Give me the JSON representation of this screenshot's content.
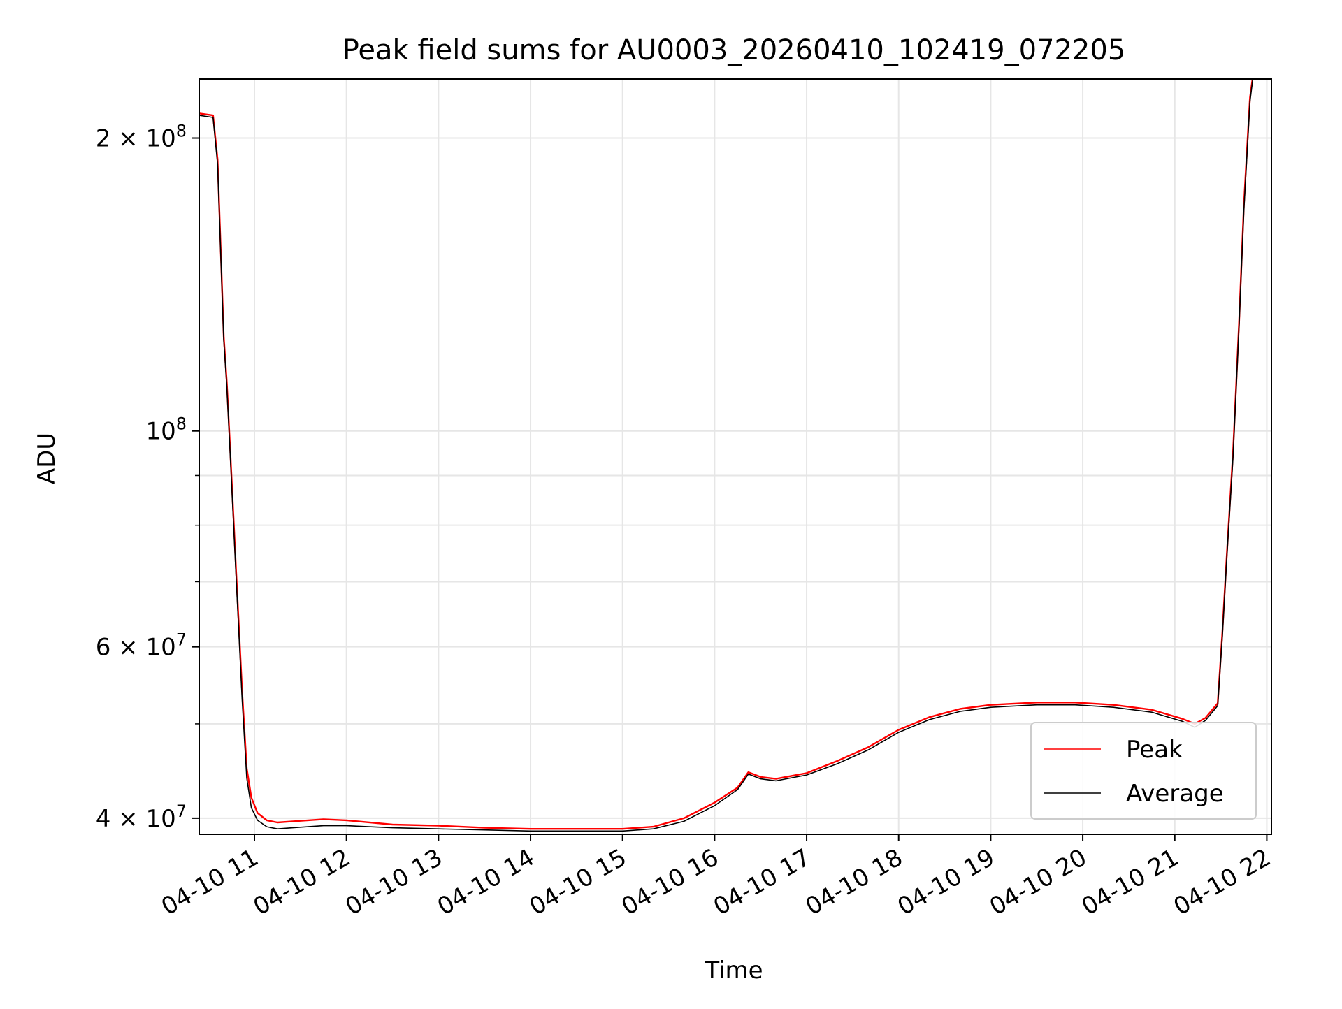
{
  "chart_data": {
    "type": "line",
    "title": "Peak field sums for AU0003_20260410_102419_072205",
    "xlabel": "Time",
    "ylabel": "ADU",
    "y_scale": "log",
    "ylim": [
      38500000,
      230000000
    ],
    "xlim": [
      "2026-04-10 10:24",
      "2026-04-10 22:03"
    ],
    "grid": true,
    "legend_position": "lower right",
    "x_tick_values": [
      "2026-04-10 11:00",
      "2026-04-10 12:00",
      "2026-04-10 13:00",
      "2026-04-10 14:00",
      "2026-04-10 15:00",
      "2026-04-10 16:00",
      "2026-04-10 17:00",
      "2026-04-10 18:00",
      "2026-04-10 19:00",
      "2026-04-10 20:00",
      "2026-04-10 21:00",
      "2026-04-10 22:00"
    ],
    "x_tick_labels": [
      "04-10 11",
      "04-10 12",
      "04-10 13",
      "04-10 14",
      "04-10 15",
      "04-10 16",
      "04-10 17",
      "04-10 18",
      "04-10 19",
      "04-10 20",
      "04-10 21",
      "04-10 22"
    ],
    "y_major_ticks": [
      {
        "value": 40000000,
        "mantissa": "4",
        "exponent": "7"
      },
      {
        "value": 60000000,
        "mantissa": "6",
        "exponent": "7"
      },
      {
        "value": 100000000,
        "mantissa": "",
        "exponent": "8"
      },
      {
        "value": 200000000,
        "mantissa": "2",
        "exponent": "8"
      }
    ],
    "y_minor_ticks": [
      50000000,
      70000000,
      80000000,
      90000000,
      300000000
    ],
    "series": [
      {
        "name": "Peak",
        "color": "#ff0000",
        "points": [
          [
            "2026-04-10 10:24",
            212000000
          ],
          [
            "2026-04-10 10:33",
            211000000
          ],
          [
            "2026-04-10 10:36",
            190000000
          ],
          [
            "2026-04-10 10:40",
            125000000
          ],
          [
            "2026-04-10 10:42",
            112000000
          ],
          [
            "2026-04-10 10:44",
            97000000
          ],
          [
            "2026-04-10 10:48",
            72000000
          ],
          [
            "2026-04-10 10:52",
            54000000
          ],
          [
            "2026-04-10 10:55",
            45000000
          ],
          [
            "2026-04-10 10:58",
            42000000
          ],
          [
            "2026-04-10 11:02",
            40500000
          ],
          [
            "2026-04-10 11:08",
            39800000
          ],
          [
            "2026-04-10 11:15",
            39600000
          ],
          [
            "2026-04-10 11:25",
            39700000
          ],
          [
            "2026-04-10 11:35",
            39800000
          ],
          [
            "2026-04-10 11:45",
            39900000
          ],
          [
            "2026-04-10 12:00",
            39800000
          ],
          [
            "2026-04-10 12:30",
            39400000
          ],
          [
            "2026-04-10 13:00",
            39300000
          ],
          [
            "2026-04-10 13:30",
            39100000
          ],
          [
            "2026-04-10 14:00",
            39000000
          ],
          [
            "2026-04-10 14:30",
            39000000
          ],
          [
            "2026-04-10 15:00",
            39000000
          ],
          [
            "2026-04-10 15:20",
            39200000
          ],
          [
            "2026-04-10 15:40",
            40000000
          ],
          [
            "2026-04-10 16:00",
            41500000
          ],
          [
            "2026-04-10 16:15",
            43000000
          ],
          [
            "2026-04-10 16:22",
            44600000
          ],
          [
            "2026-04-10 16:30",
            44100000
          ],
          [
            "2026-04-10 16:40",
            43900000
          ],
          [
            "2026-04-10 17:00",
            44500000
          ],
          [
            "2026-04-10 17:20",
            45800000
          ],
          [
            "2026-04-10 17:40",
            47300000
          ],
          [
            "2026-04-10 18:00",
            49300000
          ],
          [
            "2026-04-10 18:20",
            50800000
          ],
          [
            "2026-04-10 18:40",
            51800000
          ],
          [
            "2026-04-10 19:00",
            52300000
          ],
          [
            "2026-04-10 19:30",
            52600000
          ],
          [
            "2026-04-10 19:55",
            52600000
          ],
          [
            "2026-04-10 20:20",
            52300000
          ],
          [
            "2026-04-10 20:45",
            51700000
          ],
          [
            "2026-04-10 21:05",
            50600000
          ],
          [
            "2026-04-10 21:13",
            50000000
          ],
          [
            "2026-04-10 21:20",
            50700000
          ],
          [
            "2026-04-10 21:28",
            52500000
          ],
          [
            "2026-04-10 21:31",
            62000000
          ],
          [
            "2026-04-10 21:34",
            75000000
          ],
          [
            "2026-04-10 21:38",
            95000000
          ],
          [
            "2026-04-10 21:42",
            130000000
          ],
          [
            "2026-04-10 21:45",
            170000000
          ],
          [
            "2026-04-10 21:49",
            220000000
          ],
          [
            "2026-04-10 21:51",
            232000000
          ]
        ]
      },
      {
        "name": "Average",
        "color": "#000000",
        "points": [
          [
            "2026-04-10 10:24",
            211000000
          ],
          [
            "2026-04-10 10:33",
            210000000
          ],
          [
            "2026-04-10 10:36",
            188000000
          ],
          [
            "2026-04-10 10:40",
            124000000
          ],
          [
            "2026-04-10 10:42",
            111000000
          ],
          [
            "2026-04-10 10:44",
            96000000
          ],
          [
            "2026-04-10 10:48",
            71000000
          ],
          [
            "2026-04-10 10:52",
            53000000
          ],
          [
            "2026-04-10 10:55",
            44000000
          ],
          [
            "2026-04-10 10:58",
            41000000
          ],
          [
            "2026-04-10 11:02",
            39800000
          ],
          [
            "2026-04-10 11:08",
            39200000
          ],
          [
            "2026-04-10 11:15",
            39000000
          ],
          [
            "2026-04-10 11:25",
            39100000
          ],
          [
            "2026-04-10 11:35",
            39200000
          ],
          [
            "2026-04-10 11:45",
            39300000
          ],
          [
            "2026-04-10 12:00",
            39300000
          ],
          [
            "2026-04-10 12:30",
            39100000
          ],
          [
            "2026-04-10 13:00",
            39000000
          ],
          [
            "2026-04-10 13:30",
            38900000
          ],
          [
            "2026-04-10 14:00",
            38800000
          ],
          [
            "2026-04-10 14:30",
            38800000
          ],
          [
            "2026-04-10 15:00",
            38800000
          ],
          [
            "2026-04-10 15:20",
            39000000
          ],
          [
            "2026-04-10 15:40",
            39700000
          ],
          [
            "2026-04-10 16:00",
            41200000
          ],
          [
            "2026-04-10 16:15",
            42800000
          ],
          [
            "2026-04-10 16:22",
            44400000
          ],
          [
            "2026-04-10 16:30",
            43900000
          ],
          [
            "2026-04-10 16:40",
            43700000
          ],
          [
            "2026-04-10 17:00",
            44300000
          ],
          [
            "2026-04-10 17:20",
            45500000
          ],
          [
            "2026-04-10 17:40",
            47000000
          ],
          [
            "2026-04-10 18:00",
            49000000
          ],
          [
            "2026-04-10 18:20",
            50500000
          ],
          [
            "2026-04-10 18:40",
            51500000
          ],
          [
            "2026-04-10 19:00",
            52000000
          ],
          [
            "2026-04-10 19:30",
            52300000
          ],
          [
            "2026-04-10 19:55",
            52300000
          ],
          [
            "2026-04-10 20:20",
            52000000
          ],
          [
            "2026-04-10 20:45",
            51400000
          ],
          [
            "2026-04-10 21:05",
            50300000
          ],
          [
            "2026-04-10 21:13",
            49600000
          ],
          [
            "2026-04-10 21:20",
            50400000
          ],
          [
            "2026-04-10 21:28",
            52200000
          ],
          [
            "2026-04-10 21:31",
            61500000
          ],
          [
            "2026-04-10 21:34",
            74500000
          ],
          [
            "2026-04-10 21:38",
            94000000
          ],
          [
            "2026-04-10 21:42",
            129000000
          ],
          [
            "2026-04-10 21:45",
            168000000
          ],
          [
            "2026-04-10 21:49",
            218000000
          ],
          [
            "2026-04-10 21:51",
            231000000
          ]
        ]
      }
    ]
  }
}
